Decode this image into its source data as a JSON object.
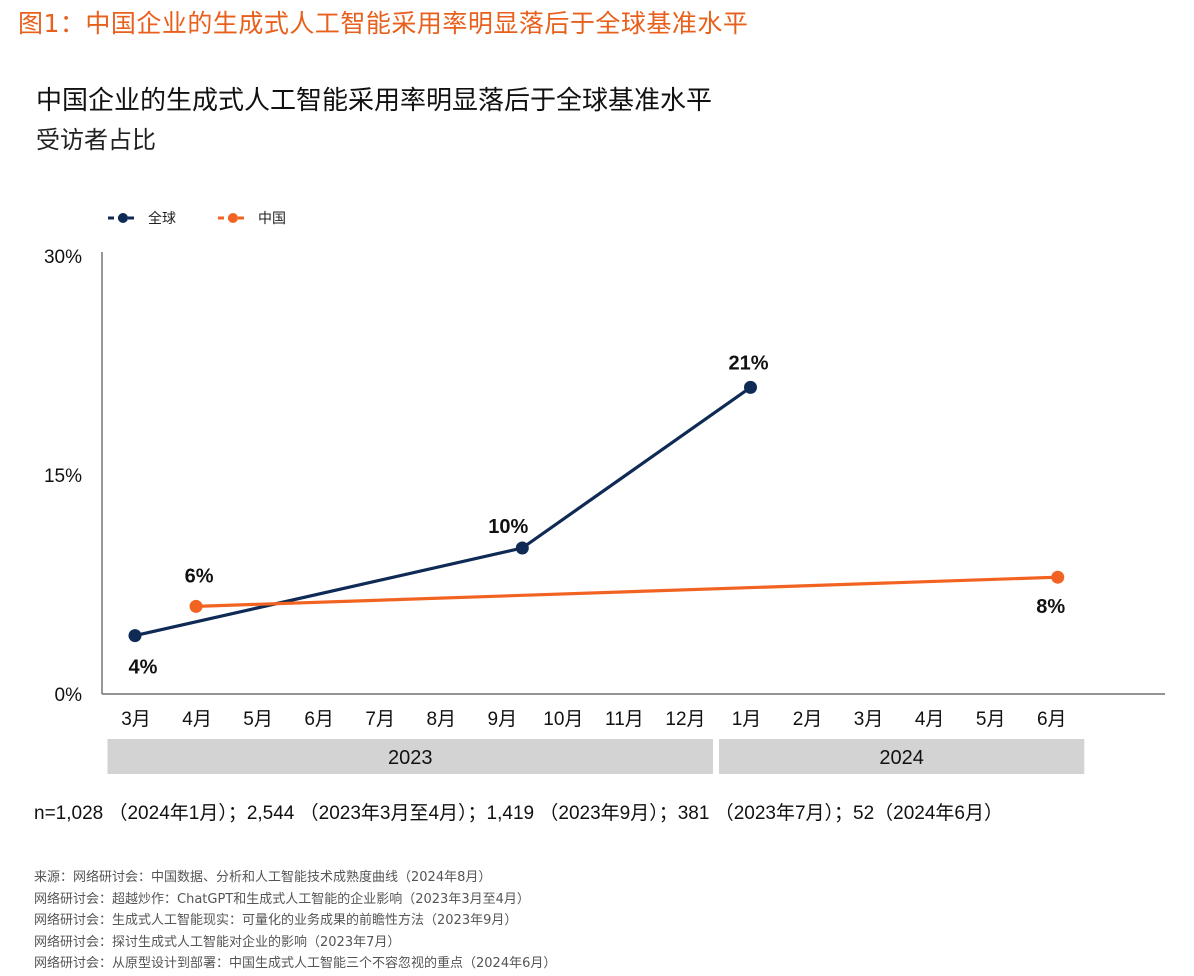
{
  "figure_label": "图1：中国企业的生成式人工智能采用率明显落后于全球基准水平",
  "sample_note": "n=1,028 （2024年1月）；2,544 （2023年3月至4月）；1,419 （2023年9月）；381 （2023年7月）；52（2024年6月）",
  "sources": [
    "来源：网络研讨会：中国数据、分析和人工智能技术成熟度曲线（2024年8月）",
    "网络研讨会：超越炒作：ChatGPT和生成式人工智能的企业影响（2023年3月至4月）",
    "网络研讨会：生成式人工智能现实：可量化的业务成果的前瞻性方法（2023年9月）",
    "网络研讨会：探讨生成式人工智能对企业的影响（2023年7月）",
    "网络研讨会：从原型设计到部署：中国生成式人工智能三个不容忽视的重点（2024年6月）"
  ],
  "colors": {
    "global": "#0e2a55",
    "china": "#f26322",
    "accent": "#e8601c",
    "band": "#d3d3d3"
  },
  "chart_data": {
    "type": "line",
    "title": "中国企业的生成式人工智能采用率明显落后于全球基准水平",
    "subtitle": "受访者占比",
    "categories": [
      "3月",
      "4月",
      "5月",
      "6月",
      "7月",
      "8月",
      "9月",
      "10月",
      "11月",
      "12月",
      "1月",
      "2月",
      "3月",
      "4月",
      "5月",
      "6月"
    ],
    "years": [
      {
        "label": "2023",
        "from_index": 0,
        "to_index": 9
      },
      {
        "label": "2024",
        "from_index": 10,
        "to_index": 15
      }
    ],
    "y_ticks": [
      "0%",
      "15%",
      "30%"
    ],
    "ylim": [
      0,
      30
    ],
    "legend_position": "top-left",
    "series": [
      {
        "name": "全球",
        "points": [
          {
            "x": "2023年3月",
            "y": 4,
            "label": "4%"
          },
          {
            "x": "2023年9月",
            "y": 10,
            "label": "10%"
          },
          {
            "x": "2024年1月",
            "y": 21,
            "label": "21%"
          }
        ]
      },
      {
        "name": "中国",
        "points": [
          {
            "x": "2023年4月",
            "y": 6,
            "label": "6%"
          },
          {
            "x": "2024年6月",
            "y": 8,
            "label": "8%"
          }
        ]
      }
    ]
  }
}
